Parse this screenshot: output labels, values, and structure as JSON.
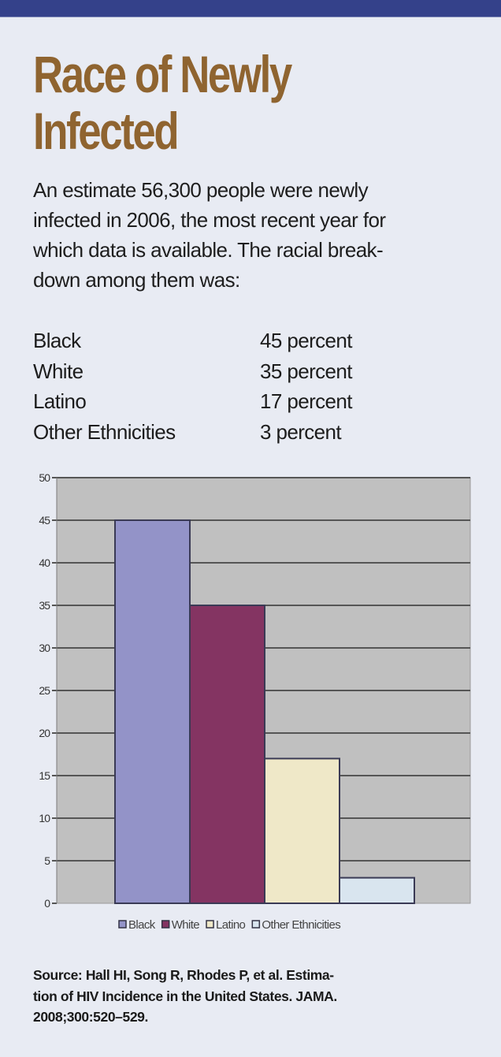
{
  "header": {
    "bar_color": "#34418a",
    "title_lines": [
      "Race of Newly",
      "Infected"
    ],
    "title_color": "#8f6430"
  },
  "intro": {
    "lines": [
      "An estimate 56,300 people were newly",
      "infected in 2006, the most recent year for",
      "which data is available. The racial break-",
      "down among them was:"
    ]
  },
  "breakdown": [
    {
      "label": "Black",
      "value": "45 percent"
    },
    {
      "label": "White",
      "value": "35 percent"
    },
    {
      "label": "Latino",
      "value": "17 percent"
    },
    {
      "label": "Other Ethnicities",
      "value": "3 percent"
    }
  ],
  "chart_data": {
    "type": "bar",
    "title": "",
    "xlabel": "",
    "ylabel": "",
    "categories": [
      "Black",
      "White",
      "Latino",
      "Other Ethnicities"
    ],
    "values": [
      45,
      35,
      17,
      3
    ],
    "colors": [
      "#9393c8",
      "#843462",
      "#efe8c8",
      "#d9e5ef"
    ],
    "ylim": [
      0,
      50
    ],
    "yticks": [
      0,
      5,
      10,
      15,
      20,
      25,
      30,
      35,
      40,
      45,
      50
    ],
    "grid": true,
    "plot_background": "#c0c0c0",
    "legend": {
      "position": "bottom",
      "entries": [
        "Black",
        "White",
        "Latino",
        "Other Ethnicities"
      ]
    }
  },
  "source": {
    "lines": [
      "Source: Hall HI, Song R, Rhodes P, et al. Estima-",
      "tion of HIV Incidence in the United States. JAMA.",
      "2008;300:520–529."
    ]
  }
}
